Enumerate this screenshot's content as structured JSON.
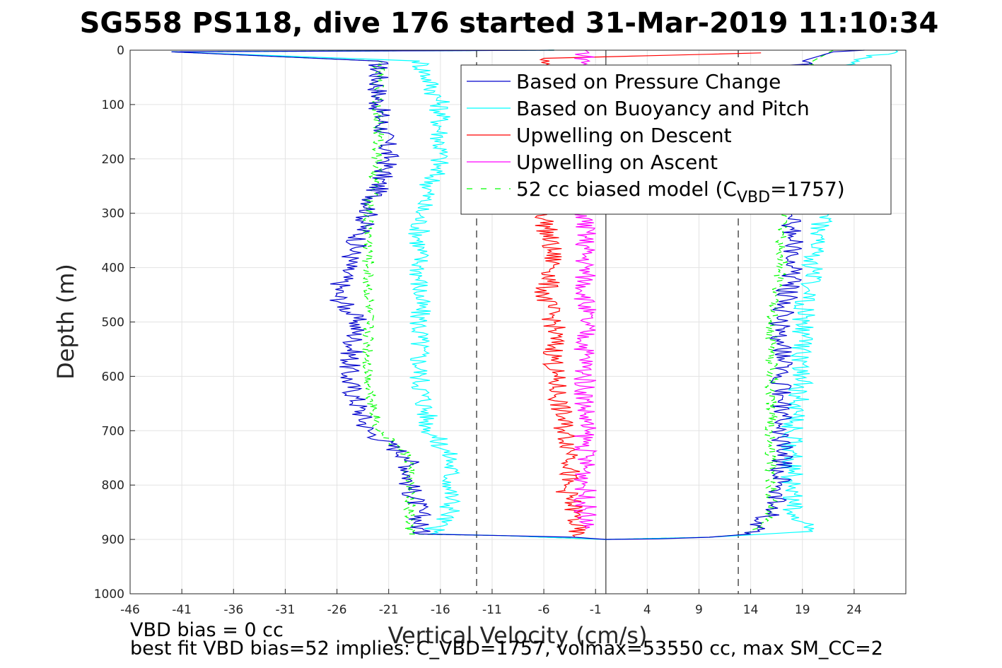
{
  "chart_data": {
    "type": "line",
    "title": "SG558 PS118, dive 176 started 31-Mar-2019 11:10:34",
    "xlabel": "Vertical Velocity (cm/s)",
    "ylabel": "Depth (m)",
    "xlim": [
      -46,
      29
    ],
    "ylim": [
      0,
      1000
    ],
    "y_reversed": true,
    "grid": true,
    "xticks": [
      -46,
      -41,
      -36,
      -31,
      -26,
      -21,
      -16,
      -11,
      -6,
      -1,
      4,
      9,
      14,
      19,
      24
    ],
    "yticks": [
      0,
      100,
      200,
      300,
      400,
      500,
      600,
      700,
      800,
      900,
      1000
    ],
    "legend_position": "top-right",
    "reference_lines": {
      "zero_velocity_x": 0,
      "dashed_x": [
        -12.5,
        12.8
      ]
    },
    "series": [
      {
        "name": "Based on Pressure Change",
        "color": "#0000cc",
        "style": "solid",
        "descent": [
          [
            -5,
            0
          ],
          [
            -42,
            3
          ],
          [
            -22,
            20
          ],
          [
            -22,
            100
          ],
          [
            -21,
            200
          ],
          [
            -23,
            300
          ],
          [
            -25,
            400
          ],
          [
            -26,
            450
          ],
          [
            -24,
            500
          ],
          [
            -25,
            600
          ],
          [
            -23,
            700
          ],
          [
            -19,
            750
          ],
          [
            -19,
            800
          ],
          [
            -18,
            850
          ],
          [
            -18,
            890
          ],
          [
            -10,
            893
          ],
          [
            -3,
            896
          ],
          [
            0,
            900
          ]
        ],
        "ascent": [
          [
            0,
            900
          ],
          [
            5,
            899
          ],
          [
            10,
            896
          ],
          [
            14,
            890
          ],
          [
            16,
            850
          ],
          [
            17,
            800
          ],
          [
            17,
            700
          ],
          [
            17,
            600
          ],
          [
            17,
            500
          ],
          [
            18,
            400
          ],
          [
            18,
            300
          ],
          [
            18,
            100
          ],
          [
            19,
            20
          ],
          [
            22,
            3
          ],
          [
            25,
            0
          ]
        ]
      },
      {
        "name": "Based on Buoyancy and Pitch",
        "color": "#00ffff",
        "style": "solid",
        "descent": [
          [
            -5,
            0
          ],
          [
            -42,
            3
          ],
          [
            -18,
            20
          ],
          [
            -16,
            100
          ],
          [
            -16,
            200
          ],
          [
            -18,
            300
          ],
          [
            -18,
            400
          ],
          [
            -18,
            500
          ],
          [
            -18,
            600
          ],
          [
            -17,
            700
          ],
          [
            -15,
            750
          ],
          [
            -15,
            800
          ],
          [
            -15,
            850
          ],
          [
            -17,
            890
          ],
          [
            -10,
            893
          ],
          [
            0,
            900
          ]
        ],
        "ascent": [
          [
            0,
            900
          ],
          [
            10,
            896
          ],
          [
            20,
            885
          ],
          [
            18,
            850
          ],
          [
            18,
            800
          ],
          [
            18,
            700
          ],
          [
            19,
            600
          ],
          [
            19,
            500
          ],
          [
            20,
            400
          ],
          [
            21,
            300
          ],
          [
            21,
            100
          ],
          [
            22,
            30
          ],
          [
            28,
            0
          ]
        ]
      },
      {
        "name": "Upwelling on Descent",
        "color": "#ff0000",
        "style": "solid",
        "points": [
          [
            15,
            5
          ],
          [
            -6,
            15
          ],
          [
            -6,
            300
          ],
          [
            -5,
            400
          ],
          [
            -6,
            450
          ],
          [
            -5,
            500
          ],
          [
            -5,
            600
          ],
          [
            -4,
            700
          ],
          [
            -3,
            750
          ],
          [
            -4,
            800
          ],
          [
            -3,
            850
          ],
          [
            -3,
            895
          ]
        ]
      },
      {
        "name": "Upwelling on Ascent",
        "color": "#ff00ff",
        "style": "solid",
        "points": [
          [
            -2,
            0
          ],
          [
            -2,
            300
          ],
          [
            -2,
            400
          ],
          [
            -2,
            450
          ],
          [
            -2,
            500
          ],
          [
            -2,
            600
          ],
          [
            -2,
            700
          ],
          [
            -2,
            800
          ],
          [
            -2,
            880
          ]
        ]
      },
      {
        "name": "52 cc biased model (C_VBD=1757)",
        "legend_label_main": "52 cc biased model (C",
        "legend_label_sub": "VBD",
        "legend_label_end": "=1757)",
        "color": "#00ff00",
        "style": "dashed",
        "descent": [
          [
            -5,
            0
          ],
          [
            -42,
            3
          ],
          [
            -22,
            20
          ],
          [
            -22,
            100
          ],
          [
            -22,
            200
          ],
          [
            -23,
            300
          ],
          [
            -23,
            400
          ],
          [
            -23,
            500
          ],
          [
            -23,
            600
          ],
          [
            -22,
            700
          ],
          [
            -19,
            750
          ],
          [
            -19,
            800
          ],
          [
            -19,
            850
          ],
          [
            -19,
            890
          ],
          [
            -10,
            893
          ],
          [
            0,
            900
          ]
        ],
        "ascent": [
          [
            0,
            900
          ],
          [
            10,
            896
          ],
          [
            14,
            890
          ],
          [
            16,
            850
          ],
          [
            16,
            800
          ],
          [
            16,
            700
          ],
          [
            16,
            600
          ],
          [
            16,
            500
          ],
          [
            17,
            400
          ],
          [
            17,
            300
          ],
          [
            18,
            100
          ],
          [
            20,
            20
          ],
          [
            22,
            0
          ]
        ]
      }
    ]
  },
  "footer": {
    "line1": "VBD bias = 0 cc",
    "line2": "best fit VBD bias=52 implies: C_VBD=1757, volmax=53550 cc, max SM_CC=2"
  }
}
